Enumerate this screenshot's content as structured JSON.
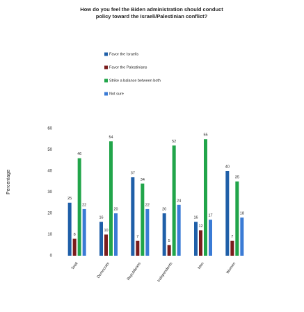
{
  "chart_data": {
    "type": "bar",
    "title": "How do you feel the Biden administration should conduct policy toward the Israeli/Palestinian conflict?",
    "y_label": "Percentage",
    "categories": [
      "Total",
      "Democrats",
      "Republicans",
      "Independents",
      "Men",
      "Women"
    ],
    "series": [
      {
        "name": "Favor the Israelis",
        "color": "#1f5fa8",
        "values": [
          25,
          16,
          37,
          20,
          16,
          40
        ]
      },
      {
        "name": "Favor the Palestinians",
        "color": "#7a1c1c",
        "values": [
          8,
          10,
          7,
          5,
          12,
          7
        ]
      },
      {
        "name": "Strike a balance between both",
        "color": "#21a54a",
        "values": [
          46,
          54,
          34,
          52,
          55,
          35
        ]
      },
      {
        "name": "Not sure",
        "color": "#3a7bd5",
        "values": [
          22,
          20,
          22,
          24,
          17,
          18
        ]
      }
    ],
    "ylim": [
      0,
      60
    ],
    "yticks": [
      0,
      10,
      20,
      30,
      40,
      50,
      60
    ],
    "grid": false,
    "legend": "top"
  }
}
